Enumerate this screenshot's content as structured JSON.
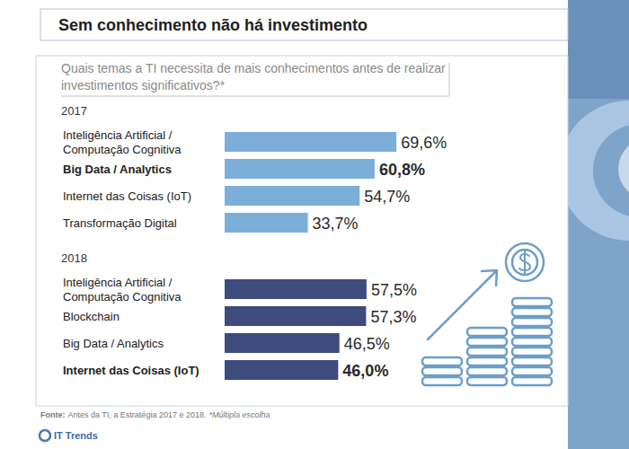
{
  "title": "Sem conhecimento não há investimento",
  "subtitle": "Quais temas a TI necessita de mais conhecimentos antes de realizar investimentos significativos?*",
  "chart_data": [
    {
      "type": "bar",
      "orientation": "horizontal",
      "title": "2017",
      "categories": [
        "Inteligência Artificial / Computação Cognitiva",
        "Big Data / Analytics",
        "Internet das Coisas (IoT)",
        "Transformação Digital"
      ],
      "values": [
        69.6,
        60.8,
        54.7,
        33.7
      ],
      "value_labels": [
        "69,6%",
        "60,8%",
        "54,7%",
        "33,7%"
      ],
      "data_labels": true,
      "color": "#7bafd9",
      "xlim": [
        0,
        75
      ],
      "tick_labels": false,
      "grid": false
    },
    {
      "type": "bar",
      "orientation": "horizontal",
      "title": "2018",
      "categories": [
        "Inteligência Artificial / Computação Cognitiva",
        "Blockchain",
        "Big Data / Analytics",
        "Internet das Coisas (IoT)"
      ],
      "values": [
        57.5,
        57.3,
        46.5,
        46.0
      ],
      "value_labels": [
        "57,5%",
        "57,3%",
        "46,5%",
        "46,0%"
      ],
      "data_labels": true,
      "color": "#3d4c7d",
      "xlim": [
        0,
        75
      ],
      "tick_labels": false,
      "grid": false
    }
  ],
  "source": {
    "label": "Fonte:",
    "text": "Antes da TI, a Estratégia 2017 e 2018.",
    "note": "*Múltipla escolha"
  },
  "logo": "IT Trends"
}
